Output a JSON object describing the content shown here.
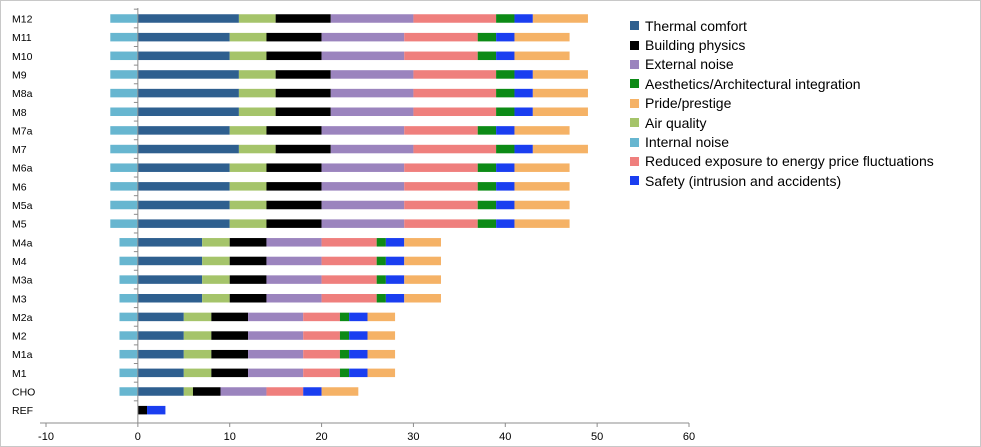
{
  "chart_data": {
    "type": "bar",
    "orientation": "horizontal",
    "stacked": true,
    "xlim": [
      -10,
      60
    ],
    "xticks": [
      "-10",
      "0",
      "10",
      "20",
      "30",
      "40",
      "50",
      "60"
    ],
    "xtick_values": [
      -10,
      0,
      10,
      20,
      30,
      40,
      50,
      60
    ],
    "grid": false,
    "legend_position": "right",
    "categories": [
      "M12",
      "M11",
      "M10",
      "M9",
      "M8a",
      "M8",
      "M7a",
      "M7",
      "M6a",
      "M6",
      "M5a",
      "M5",
      "M4a",
      "M4",
      "M3a",
      "M3",
      "M2a",
      "M2",
      "M1a",
      "M1",
      "CHO",
      "REF"
    ],
    "series": [
      {
        "name": "Thermal comfort",
        "color": "#2e5f8f",
        "values": [
          11,
          10,
          10,
          11,
          11,
          11,
          10,
          11,
          10,
          10,
          10,
          10,
          7,
          7,
          7,
          7,
          5,
          5,
          5,
          5,
          5,
          0
        ]
      },
      {
        "name": "Building physics",
        "color": "#000000",
        "values": [
          6,
          6,
          6,
          6,
          6,
          6,
          6,
          6,
          6,
          6,
          6,
          6,
          4,
          4,
          4,
          4,
          4,
          4,
          4,
          4,
          3,
          1
        ]
      },
      {
        "name": "External noise",
        "color": "#9b84be",
        "values": [
          9,
          9,
          9,
          9,
          9,
          9,
          9,
          9,
          9,
          9,
          9,
          9,
          6,
          6,
          6,
          6,
          6,
          6,
          6,
          6,
          5,
          0
        ]
      },
      {
        "name": "Aesthetics/Architectural integration",
        "color": "#0c8a16",
        "values": [
          2,
          2,
          2,
          2,
          2,
          2,
          2,
          2,
          2,
          2,
          2,
          2,
          1,
          1,
          1,
          1,
          1,
          1,
          1,
          1,
          0,
          0
        ]
      },
      {
        "name": "Pride/prestige",
        "color": "#f5b266",
        "values": [
          6,
          6,
          6,
          6,
          6,
          6,
          6,
          6,
          6,
          6,
          6,
          6,
          4,
          4,
          4,
          4,
          3,
          3,
          3,
          3,
          4,
          0
        ]
      },
      {
        "name": "Air quality",
        "color": "#a5c46a",
        "values": [
          4,
          4,
          4,
          4,
          4,
          4,
          4,
          4,
          4,
          4,
          4,
          4,
          3,
          3,
          3,
          3,
          3,
          3,
          3,
          3,
          1,
          0
        ]
      },
      {
        "name": "Internal noise",
        "color": "#67b6d0",
        "values": [
          -3,
          -3,
          -3,
          -3,
          -3,
          -3,
          -3,
          -3,
          -3,
          -3,
          -3,
          -3,
          -2,
          -2,
          -2,
          -2,
          -2,
          -2,
          -2,
          -2,
          -2,
          0
        ]
      },
      {
        "name": "Reduced exposure to energy price fluctuations",
        "color": "#ef7f7d",
        "values": [
          9,
          8,
          8,
          9,
          9,
          9,
          8,
          9,
          8,
          8,
          8,
          8,
          6,
          6,
          6,
          6,
          4,
          4,
          4,
          4,
          4,
          0
        ]
      },
      {
        "name": "Safety (intrusion and accidents)",
        "color": "#1a3ef0",
        "values": [
          2,
          2,
          2,
          2,
          2,
          2,
          2,
          2,
          2,
          2,
          2,
          2,
          2,
          2,
          2,
          2,
          2,
          2,
          2,
          2,
          2,
          2
        ]
      }
    ],
    "stack_order": [
      "Thermal comfort",
      "Air quality",
      "Building physics",
      "External noise",
      "Reduced exposure to energy price fluctuations",
      "Aesthetics/Architectural integration",
      "Safety (intrusion and accidents)",
      "Pride/prestige"
    ]
  }
}
